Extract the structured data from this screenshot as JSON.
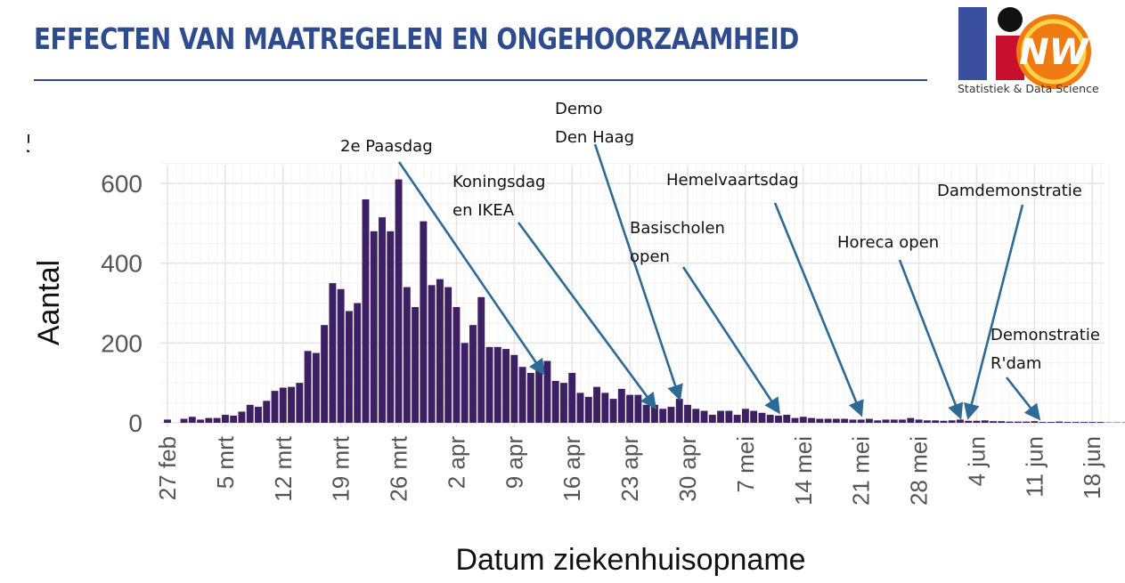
{
  "page": {
    "title": "EFFECTEN VAN MAATREGELEN EN ONGEHOORZAAMHEID",
    "logo_caption": "Statistiek & Data Science",
    "logo_text": "NW"
  },
  "colors": {
    "title": "#2f4b8f",
    "bar": "#3d1f63",
    "arrow": "#2e6a96",
    "grid_major": "#e6e6e6",
    "grid_minor": "#f2f2f2"
  },
  "chart_data": {
    "type": "bar",
    "title": "",
    "xlabel": "Datum ziekenhuisopname",
    "ylabel": "Aantal",
    "ylim": [
      0,
      650
    ],
    "y_ticks": [
      0,
      200,
      400,
      600
    ],
    "grid": true,
    "x_start": "27 feb",
    "x_ticks": [
      {
        "label": "27 feb",
        "day": 0
      },
      {
        "label": "5 mrt",
        "day": 7
      },
      {
        "label": "12 mrt",
        "day": 14
      },
      {
        "label": "19 mrt",
        "day": 21
      },
      {
        "label": "26 mrt",
        "day": 28
      },
      {
        "label": "2 apr",
        "day": 35
      },
      {
        "label": "9 apr",
        "day": 42
      },
      {
        "label": "16 apr",
        "day": 49
      },
      {
        "label": "23 apr",
        "day": 56
      },
      {
        "label": "30 apr",
        "day": 63
      },
      {
        "label": "7 mei",
        "day": 70
      },
      {
        "label": "14 mei",
        "day": 77
      },
      {
        "label": "21 mei",
        "day": 84
      },
      {
        "label": "28 mei",
        "day": 91
      },
      {
        "label": "4 jun",
        "day": 98
      },
      {
        "label": "11 jun",
        "day": 105
      },
      {
        "label": "18 jun",
        "day": 112
      }
    ],
    "values": [
      8,
      0,
      10,
      15,
      8,
      12,
      12,
      20,
      18,
      28,
      45,
      40,
      55,
      80,
      88,
      90,
      100,
      180,
      175,
      245,
      350,
      335,
      280,
      300,
      560,
      480,
      515,
      480,
      610,
      340,
      290,
      505,
      345,
      360,
      340,
      290,
      200,
      245,
      315,
      190,
      190,
      185,
      170,
      140,
      125,
      140,
      155,
      105,
      100,
      125,
      75,
      65,
      90,
      75,
      60,
      85,
      70,
      70,
      45,
      45,
      35,
      40,
      60,
      45,
      35,
      30,
      20,
      30,
      30,
      20,
      35,
      30,
      25,
      20,
      18,
      20,
      12,
      15,
      12,
      10,
      10,
      10,
      10,
      8,
      8,
      10,
      6,
      8,
      8,
      8,
      12,
      8,
      6,
      6,
      5,
      6,
      8,
      5,
      5,
      6,
      4,
      4,
      3,
      3,
      3,
      4,
      2,
      2,
      3,
      2,
      2,
      2,
      2,
      2,
      1,
      1,
      1
    ],
    "annotations": [
      {
        "lines": [
          "2e Paasdag"
        ],
        "target_day": 45.5,
        "target_value": 125
      },
      {
        "lines": [
          "Koningsdag",
          "en IKEA"
        ],
        "target_day": 59,
        "target_value": 40
      },
      {
        "lines": [
          "Demo",
          "Den Haag"
        ],
        "target_day": 62,
        "target_value": 62
      },
      {
        "lines": [
          "Basischolen",
          "open"
        ],
        "target_day": 74,
        "target_value": 28
      },
      {
        "lines": [
          "Hemelvaartsdag"
        ],
        "target_day": 84,
        "target_value": 22
      },
      {
        "lines": [
          "Horeca open"
        ],
        "target_day": 96,
        "target_value": 15
      },
      {
        "lines": [
          "Damdemonstratie"
        ],
        "target_day": 97,
        "target_value": 15
      },
      {
        "lines": [
          "Demonstratie",
          "R'dam"
        ],
        "target_day": 105.5,
        "target_value": 12
      }
    ]
  }
}
